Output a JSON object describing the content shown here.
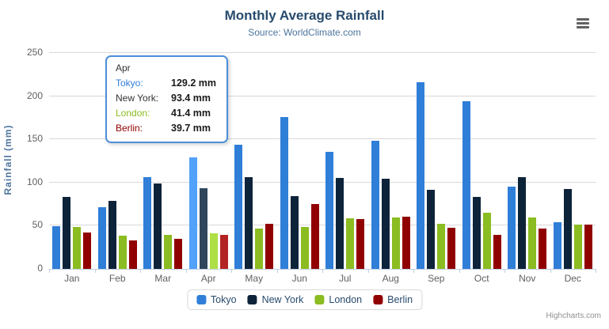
{
  "chart_data": {
    "type": "bar",
    "title": "Monthly Average Rainfall",
    "subtitle": "Source: WorldClimate.com",
    "ylabel": "Rainfall (mm)",
    "xlabel": "",
    "categories": [
      "Jan",
      "Feb",
      "Mar",
      "Apr",
      "May",
      "Jun",
      "Jul",
      "Aug",
      "Sep",
      "Oct",
      "Nov",
      "Dec"
    ],
    "y_ticks": [
      0,
      50,
      100,
      150,
      200,
      250
    ],
    "ylim": [
      0,
      250
    ],
    "grid": true,
    "legend_position": "bottom",
    "series": [
      {
        "name": "Tokyo",
        "color": "#2f7ed8",
        "values": [
          49.9,
          71.5,
          106.4,
          129.2,
          144.0,
          176.0,
          135.6,
          148.5,
          216.4,
          194.1,
          95.6,
          54.4
        ]
      },
      {
        "name": "New York",
        "color": "#0d233a",
        "values": [
          83.6,
          78.8,
          98.5,
          93.4,
          106.0,
          84.5,
          105.0,
          104.3,
          91.2,
          83.5,
          106.6,
          92.3
        ]
      },
      {
        "name": "London",
        "color": "#8bbc21",
        "values": [
          48.9,
          38.8,
          39.3,
          41.4,
          47.0,
          48.3,
          59.0,
          59.6,
          52.4,
          65.2,
          59.3,
          51.2
        ]
      },
      {
        "name": "Berlin",
        "color": "#910000",
        "values": [
          42.4,
          33.2,
          34.5,
          39.7,
          52.6,
          75.5,
          57.4,
          60.4,
          47.6,
          39.1,
          46.8,
          51.1
        ]
      }
    ]
  },
  "tooltip": {
    "category": "Apr",
    "hovered_category_index": 3,
    "border_color": "#4e8fd9",
    "rows": [
      {
        "label": "Tokyo:",
        "value": "129.2 mm",
        "color": "#2f7ed8"
      },
      {
        "label": "New York:",
        "value": "93.4 mm",
        "color": "#333333"
      },
      {
        "label": "London:",
        "value": "41.4 mm",
        "color": "#8bbc21"
      },
      {
        "label": "Berlin:",
        "value": "39.7 mm",
        "color": "#910000"
      }
    ]
  },
  "icons": {
    "menu": "hamburger-menu"
  },
  "credit": "Highcharts.com"
}
